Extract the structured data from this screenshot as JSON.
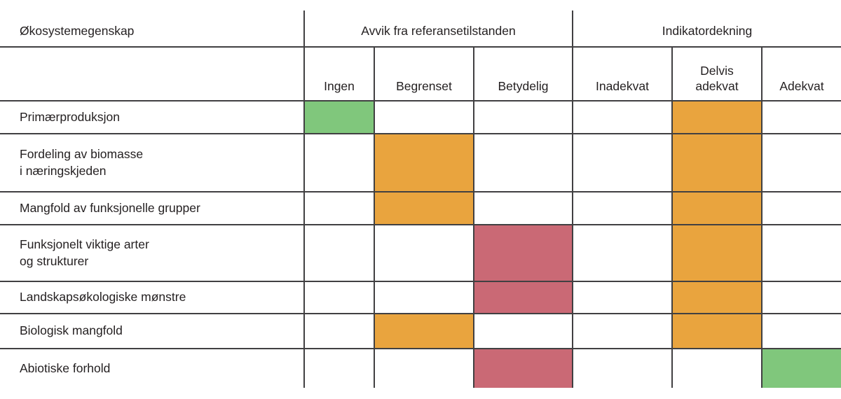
{
  "table": {
    "corner_label": "Økosystemegenskap",
    "groups": [
      {
        "label": "Avvik fra referansetilstanden",
        "columns": [
          "Ingen",
          "Begrenset",
          "Betydelig"
        ]
      },
      {
        "label": "Indikatordekning",
        "columns": [
          "Inadekvat",
          "Delvis\nadekvat",
          "Adekvat"
        ]
      }
    ],
    "rows": [
      {
        "label": "Primærproduksjon",
        "cells": [
          "green",
          "",
          "",
          "",
          "orange",
          ""
        ]
      },
      {
        "label": "Fordeling av biomasse\ni næringskjeden",
        "cells": [
          "",
          "orange",
          "",
          "",
          "orange",
          ""
        ]
      },
      {
        "label": "Mangfold av funksjonelle grupper",
        "cells": [
          "",
          "orange",
          "",
          "",
          "orange",
          ""
        ]
      },
      {
        "label": "Funksjonelt viktige arter\nog strukturer",
        "cells": [
          "",
          "",
          "red",
          "",
          "orange",
          ""
        ]
      },
      {
        "label": "Landskapsøkologiske mønstre",
        "cells": [
          "",
          "",
          "red",
          "",
          "orange",
          ""
        ]
      },
      {
        "label": "Biologisk mangfold",
        "cells": [
          "",
          "orange",
          "",
          "",
          "orange",
          ""
        ]
      },
      {
        "label": "Abiotiske forhold",
        "cells": [
          "",
          "",
          "red",
          "",
          "",
          "green"
        ]
      }
    ]
  },
  "palette": {
    "green": "#80C77C",
    "orange": "#E9A43E",
    "red": "#CA6975",
    "grid_line": "#414042",
    "text": "#231F20",
    "background": "#FFFFFF"
  },
  "chart_data": {
    "type": "table",
    "row_header": "Økosystemegenskap",
    "column_groups": [
      {
        "label": "Avvik fra referansetilstanden",
        "columns": [
          "Ingen",
          "Begrenset",
          "Betydelig"
        ]
      },
      {
        "label": "Indikatordekning",
        "columns": [
          "Inadekvat",
          "Delvis adekvat",
          "Adekvat"
        ]
      }
    ],
    "rows": [
      {
        "label": "Primærproduksjon",
        "avvik_fra_referansetilstanden": "Ingen",
        "avvik_color": "green",
        "indikatordekning": "Delvis adekvat",
        "dekning_color": "orange"
      },
      {
        "label": "Fordeling av biomasse i næringskjeden",
        "avvik_fra_referansetilstanden": "Begrenset",
        "avvik_color": "orange",
        "indikatordekning": "Delvis adekvat",
        "dekning_color": "orange"
      },
      {
        "label": "Mangfold av funksjonelle grupper",
        "avvik_fra_referansetilstanden": "Begrenset",
        "avvik_color": "orange",
        "indikatordekning": "Delvis adekvat",
        "dekning_color": "orange"
      },
      {
        "label": "Funksjonelt viktige arter og strukturer",
        "avvik_fra_referansetilstanden": "Betydelig",
        "avvik_color": "red",
        "indikatordekning": "Delvis adekvat",
        "dekning_color": "orange"
      },
      {
        "label": "Landskapsøkologiske mønstre",
        "avvik_fra_referansetilstanden": "Betydelig",
        "avvik_color": "red",
        "indikatordekning": "Delvis adekvat",
        "dekning_color": "orange"
      },
      {
        "label": "Biologisk mangfold",
        "avvik_fra_referansetilstanden": "Begrenset",
        "avvik_color": "orange",
        "indikatordekning": "Delvis adekvat",
        "dekning_color": "orange"
      },
      {
        "label": "Abiotiske forhold",
        "avvik_fra_referansetilstanden": "Betydelig",
        "avvik_color": "red",
        "indikatordekning": "Adekvat",
        "dekning_color": "green"
      }
    ],
    "layout": {
      "grid": true,
      "legend": false
    }
  }
}
